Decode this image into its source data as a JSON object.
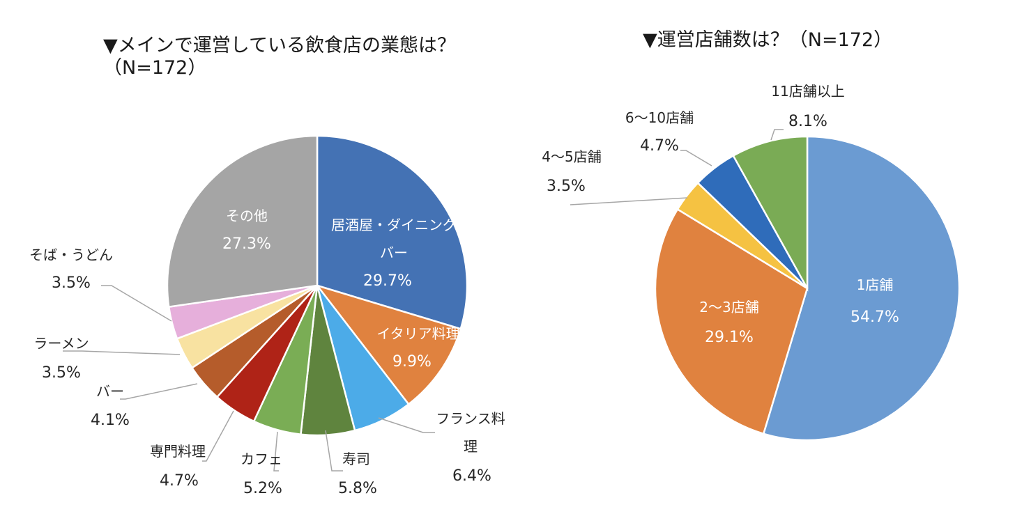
{
  "chart_data": [
    {
      "type": "pie",
      "title_line1": "▼メインで運営している飲食店の業態は？",
      "title_line2": "（N=172）",
      "slices": [
        {
          "key": "izakaya",
          "label_lines": [
            "居酒屋・ダイニング",
            "バー"
          ],
          "value": 29.7,
          "value_label": "29.7%",
          "color": "#4472b4"
        },
        {
          "key": "italian",
          "label_lines": [
            "イタリア料理"
          ],
          "value": 9.9,
          "value_label": "9.9%",
          "color": "#e0823f"
        },
        {
          "key": "french",
          "label_lines": [
            "フランス料",
            "理"
          ],
          "value": 6.4,
          "value_label": "6.4%",
          "color": "#4cabe8"
        },
        {
          "key": "sushi",
          "label_lines": [
            "寿司"
          ],
          "value": 5.8,
          "value_label": "5.8%",
          "color": "#5f843e"
        },
        {
          "key": "cafe",
          "label_lines": [
            "カフェ"
          ],
          "value": 5.2,
          "value_label": "5.2%",
          "color": "#7aad55"
        },
        {
          "key": "specialty",
          "label_lines": [
            "専門料理"
          ],
          "value": 4.7,
          "value_label": "4.7%",
          "color": "#af2317"
        },
        {
          "key": "bar",
          "label_lines": [
            "バー"
          ],
          "value": 4.1,
          "value_label": "4.1%",
          "color": "#b55c2b"
        },
        {
          "key": "ramen",
          "label_lines": [
            "ラーメン"
          ],
          "value": 3.5,
          "value_label": "3.5%",
          "color": "#f8e2a1"
        },
        {
          "key": "soba",
          "label_lines": [
            "そば・うどん"
          ],
          "value": 3.5,
          "value_label": "3.5%",
          "color": "#e6afdb"
        },
        {
          "key": "other",
          "label_lines": [
            "その他"
          ],
          "value": 27.3,
          "value_label": "27.3%",
          "color": "#a5a5a5"
        }
      ]
    },
    {
      "type": "pie",
      "title": "▼運営店舗数は？（N=172）",
      "slices": [
        {
          "key": "one",
          "label_lines": [
            "1店舗"
          ],
          "value": 54.7,
          "value_label": "54.7%",
          "color": "#6b9bd2"
        },
        {
          "key": "two-three",
          "label_lines": [
            "2〜3店舗"
          ],
          "value": 29.1,
          "value_label": "29.1%",
          "color": "#e0823f"
        },
        {
          "key": "four-five",
          "label_lines": [
            "4〜5店舗"
          ],
          "value": 3.5,
          "value_label": "3.5%",
          "color": "#f5c242"
        },
        {
          "key": "six-ten",
          "label_lines": [
            "6〜10店舗"
          ],
          "value": 4.7,
          "value_label": "4.7%",
          "color": "#2f6cba"
        },
        {
          "key": "eleven-plus",
          "label_lines": [
            "11店舗以上"
          ],
          "value": 8.1,
          "value_label": "8.1%",
          "color": "#7aab55"
        }
      ]
    }
  ]
}
